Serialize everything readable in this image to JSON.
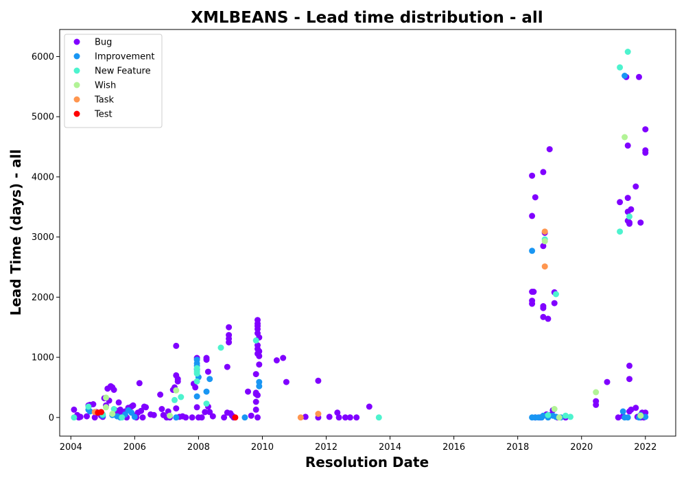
{
  "chart_data": {
    "type": "scatter",
    "title": "XMLBEANS - Lead time distribution - all",
    "xlabel": "Resolution Date",
    "ylabel": "Lead Time (days) - all",
    "xlim": [
      2003.65,
      2022.95
    ],
    "ylim": [
      -310,
      6450
    ],
    "xticks": [
      2004,
      2006,
      2008,
      2010,
      2012,
      2014,
      2016,
      2018,
      2020,
      2022
    ],
    "xtick_labels": [
      "2004",
      "2006",
      "2008",
      "2010",
      "2012",
      "2014",
      "2016",
      "2018",
      "2020",
      "2022"
    ],
    "yticks": [
      0,
      1000,
      2000,
      3000,
      4000,
      5000,
      6000
    ],
    "ytick_labels": [
      "0",
      "1000",
      "2000",
      "3000",
      "4000",
      "5000",
      "6000"
    ],
    "grid": false,
    "legend_position": "top-left",
    "series": [
      {
        "name": "Bug",
        "color": "#8000ff",
        "points": [
          [
            2004.1,
            130
          ],
          [
            2004.2,
            40
          ],
          [
            2004.25,
            0
          ],
          [
            2004.3,
            10
          ],
          [
            2004.5,
            20
          ],
          [
            2004.55,
            200
          ],
          [
            2004.6,
            210
          ],
          [
            2004.7,
            220
          ],
          [
            2004.75,
            0
          ],
          [
            2004.8,
            90
          ],
          [
            2004.9,
            60
          ],
          [
            2004.95,
            30
          ],
          [
            2005.0,
            10
          ],
          [
            2005.05,
            320
          ],
          [
            2005.1,
            200
          ],
          [
            2005.15,
            480
          ],
          [
            2005.2,
            280
          ],
          [
            2005.25,
            520
          ],
          [
            2005.3,
            500
          ],
          [
            2005.35,
            460
          ],
          [
            2005.4,
            120
          ],
          [
            2005.45,
            60
          ],
          [
            2005.5,
            250
          ],
          [
            2005.55,
            130
          ],
          [
            2005.6,
            40
          ],
          [
            2005.7,
            100
          ],
          [
            2005.75,
            0
          ],
          [
            2005.8,
            160
          ],
          [
            2005.9,
            180
          ],
          [
            2005.95,
            200
          ],
          [
            2006.0,
            30
          ],
          [
            2006.05,
            0
          ],
          [
            2006.1,
            80
          ],
          [
            2006.15,
            570
          ],
          [
            2006.2,
            110
          ],
          [
            2006.25,
            0
          ],
          [
            2006.3,
            180
          ],
          [
            2006.35,
            170
          ],
          [
            2006.5,
            50
          ],
          [
            2006.6,
            40
          ],
          [
            2006.8,
            380
          ],
          [
            2006.85,
            140
          ],
          [
            2006.9,
            40
          ],
          [
            2007.0,
            0
          ],
          [
            2007.05,
            100
          ],
          [
            2007.1,
            0
          ],
          [
            2007.2,
            460
          ],
          [
            2007.25,
            500
          ],
          [
            2007.3,
            1190
          ],
          [
            2007.3,
            700
          ],
          [
            2007.35,
            640
          ],
          [
            2007.35,
            600
          ],
          [
            2007.3,
            150
          ],
          [
            2007.4,
            10
          ],
          [
            2007.5,
            20
          ],
          [
            2007.6,
            0
          ],
          [
            2007.8,
            0
          ],
          [
            2007.85,
            560
          ],
          [
            2007.9,
            500
          ],
          [
            2007.95,
            990
          ],
          [
            2007.95,
            170
          ],
          [
            2008.0,
            0
          ],
          [
            2008.1,
            0
          ],
          [
            2008.2,
            90
          ],
          [
            2008.25,
            960
          ],
          [
            2008.25,
            990
          ],
          [
            2008.3,
            760
          ],
          [
            2008.3,
            180
          ],
          [
            2008.35,
            90
          ],
          [
            2008.45,
            20
          ],
          [
            2008.8,
            0
          ],
          [
            2008.9,
            840
          ],
          [
            2008.9,
            80
          ],
          [
            2008.95,
            1500
          ],
          [
            2008.95,
            1370
          ],
          [
            2008.95,
            1310
          ],
          [
            2008.95,
            1250
          ],
          [
            2009.0,
            70
          ],
          [
            2009.05,
            30
          ],
          [
            2009.1,
            0
          ],
          [
            2009.55,
            430
          ],
          [
            2009.65,
            30
          ],
          [
            2009.8,
            720
          ],
          [
            2009.8,
            410
          ],
          [
            2009.8,
            390
          ],
          [
            2009.85,
            370
          ],
          [
            2009.8,
            260
          ],
          [
            2009.8,
            130
          ],
          [
            2009.85,
            0
          ],
          [
            2009.85,
            1620
          ],
          [
            2009.85,
            1560
          ],
          [
            2009.85,
            1520
          ],
          [
            2009.85,
            1470
          ],
          [
            2009.85,
            1400
          ],
          [
            2009.9,
            1330
          ],
          [
            2009.85,
            1200
          ],
          [
            2009.85,
            1140
          ],
          [
            2009.85,
            1060
          ],
          [
            2009.9,
            1100
          ],
          [
            2009.9,
            1020
          ],
          [
            2009.9,
            880
          ],
          [
            2010.45,
            950
          ],
          [
            2010.65,
            990
          ],
          [
            2010.75,
            590
          ],
          [
            2011.35,
            10
          ],
          [
            2011.75,
            610
          ],
          [
            2011.75,
            0
          ],
          [
            2012.1,
            10
          ],
          [
            2012.35,
            80
          ],
          [
            2012.4,
            0
          ],
          [
            2012.6,
            0
          ],
          [
            2012.75,
            0
          ],
          [
            2012.95,
            0
          ],
          [
            2013.35,
            180
          ],
          [
            2018.45,
            4020
          ],
          [
            2018.45,
            3350
          ],
          [
            2018.45,
            2090
          ],
          [
            2018.5,
            2090
          ],
          [
            2018.45,
            1940
          ],
          [
            2018.45,
            1890
          ],
          [
            2018.55,
            3660
          ],
          [
            2018.55,
            0
          ],
          [
            2018.7,
            0
          ],
          [
            2018.8,
            4080
          ],
          [
            2018.8,
            2850
          ],
          [
            2018.8,
            1850
          ],
          [
            2018.8,
            1820
          ],
          [
            2018.8,
            1670
          ],
          [
            2018.85,
            3070
          ],
          [
            2018.9,
            50
          ],
          [
            2018.95,
            1640
          ],
          [
            2019.0,
            4460
          ],
          [
            2019.0,
            40
          ],
          [
            2019.1,
            120
          ],
          [
            2019.15,
            2080
          ],
          [
            2019.15,
            1900
          ],
          [
            2019.25,
            0
          ],
          [
            2019.5,
            0
          ],
          [
            2020.45,
            270
          ],
          [
            2020.45,
            210
          ],
          [
            2020.8,
            590
          ],
          [
            2021.15,
            0
          ],
          [
            2021.2,
            3580
          ],
          [
            2021.3,
            20
          ],
          [
            2021.4,
            5660
          ],
          [
            2021.45,
            4520
          ],
          [
            2021.45,
            3650
          ],
          [
            2021.45,
            3420
          ],
          [
            2021.45,
            3270
          ],
          [
            2021.5,
            3240
          ],
          [
            2021.55,
            3460
          ],
          [
            2021.5,
            3220
          ],
          [
            2021.5,
            860
          ],
          [
            2021.5,
            640
          ],
          [
            2021.5,
            100
          ],
          [
            2021.55,
            130
          ],
          [
            2021.7,
            3840
          ],
          [
            2021.7,
            160
          ],
          [
            2021.8,
            5660
          ],
          [
            2021.85,
            3240
          ],
          [
            2021.75,
            10
          ],
          [
            2021.85,
            0
          ],
          [
            2021.9,
            80
          ],
          [
            2021.95,
            0
          ],
          [
            2022.0,
            4790
          ],
          [
            2022.0,
            4440
          ],
          [
            2022.0,
            4400
          ],
          [
            2022.0,
            80
          ]
        ]
      },
      {
        "name": "Improvement",
        "color": "#1996f3",
        "points": [
          [
            2004.55,
            130
          ],
          [
            2004.6,
            100
          ],
          [
            2005.0,
            30
          ],
          [
            2005.3,
            40
          ],
          [
            2005.45,
            20
          ],
          [
            2005.55,
            0
          ],
          [
            2005.7,
            50
          ],
          [
            2005.8,
            120
          ],
          [
            2005.9,
            80
          ],
          [
            2006.0,
            10
          ],
          [
            2007.3,
            0
          ],
          [
            2007.95,
            960
          ],
          [
            2007.95,
            900
          ],
          [
            2007.95,
            860
          ],
          [
            2007.95,
            800
          ],
          [
            2008.0,
            670
          ],
          [
            2007.95,
            350
          ],
          [
            2008.25,
            430
          ],
          [
            2008.35,
            640
          ],
          [
            2009.45,
            0
          ],
          [
            2009.9,
            590
          ],
          [
            2009.9,
            520
          ],
          [
            2018.45,
            2770
          ],
          [
            2018.45,
            0
          ],
          [
            2018.55,
            0
          ],
          [
            2018.65,
            0
          ],
          [
            2018.75,
            0
          ],
          [
            2018.8,
            30
          ],
          [
            2018.95,
            0
          ],
          [
            2019.1,
            30
          ],
          [
            2019.2,
            10
          ],
          [
            2019.35,
            0
          ],
          [
            2021.3,
            100
          ],
          [
            2021.35,
            5680
          ],
          [
            2021.35,
            0
          ],
          [
            2021.45,
            0
          ],
          [
            2021.8,
            0
          ],
          [
            2021.85,
            40
          ],
          [
            2022.0,
            10
          ]
        ]
      },
      {
        "name": "New Feature",
        "color": "#4df3ce",
        "points": [
          [
            2004.1,
            0
          ],
          [
            2004.55,
            180
          ],
          [
            2005.0,
            50
          ],
          [
            2005.35,
            140
          ],
          [
            2005.6,
            0
          ],
          [
            2007.25,
            290
          ],
          [
            2007.45,
            340
          ],
          [
            2007.95,
            820
          ],
          [
            2007.95,
            760
          ],
          [
            2007.95,
            730
          ],
          [
            2007.95,
            600
          ],
          [
            2008.25,
            230
          ],
          [
            2008.7,
            1160
          ],
          [
            2009.8,
            1280
          ],
          [
            2013.65,
            0
          ],
          [
            2018.85,
            2960
          ],
          [
            2018.95,
            40
          ],
          [
            2019.2,
            2050
          ],
          [
            2019.5,
            30
          ],
          [
            2019.65,
            10
          ],
          [
            2021.2,
            5820
          ],
          [
            2021.2,
            3090
          ],
          [
            2021.45,
            6080
          ],
          [
            2021.5,
            3340
          ]
        ]
      },
      {
        "name": "Wish",
        "color": "#b2f396",
        "points": [
          [
            2005.1,
            330
          ],
          [
            2005.1,
            170
          ],
          [
            2005.3,
            60
          ],
          [
            2007.1,
            30
          ],
          [
            2007.3,
            450
          ],
          [
            2018.85,
            2930
          ],
          [
            2019.15,
            140
          ],
          [
            2019.3,
            0
          ],
          [
            2020.45,
            420
          ],
          [
            2021.35,
            4660
          ],
          [
            2021.85,
            30
          ]
        ]
      },
      {
        "name": "Task",
        "color": "#ff964f",
        "points": [
          [
            2004.75,
            90
          ],
          [
            2011.2,
            0
          ],
          [
            2011.75,
            60
          ],
          [
            2018.85,
            2510
          ],
          [
            2018.85,
            3090
          ]
        ]
      },
      {
        "name": "Test",
        "color": "#ff0000",
        "points": [
          [
            2004.85,
            80
          ],
          [
            2004.95,
            90
          ],
          [
            2009.15,
            0
          ]
        ]
      }
    ]
  }
}
